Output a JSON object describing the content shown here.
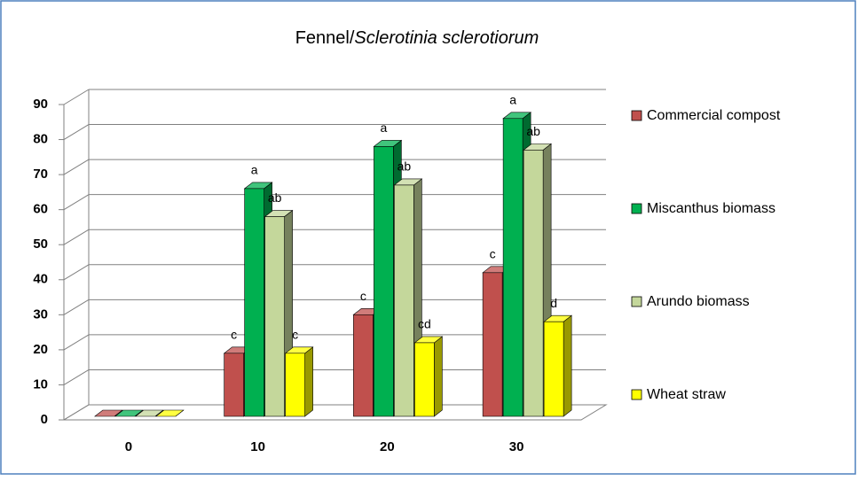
{
  "chart_data": {
    "type": "bar3d",
    "title": [
      "Fennel/",
      "Sclerotinia sclerotiorum"
    ],
    "categories": [
      "0",
      "10",
      "20",
      "30"
    ],
    "series": [
      {
        "name": "Commercial compost",
        "color": "#c0504d",
        "values": [
          0,
          18,
          29,
          41
        ],
        "annotations": [
          null,
          "c",
          "c",
          "c"
        ]
      },
      {
        "name": "Miscanthus biomass",
        "color": "#00b050",
        "values": [
          0,
          65,
          77,
          85
        ],
        "annotations": [
          null,
          "a",
          "a",
          "a"
        ]
      },
      {
        "name": "Arundo biomass",
        "color": "#c4d79b",
        "values": [
          0,
          57,
          66,
          76
        ],
        "annotations": [
          null,
          "ab",
          "ab",
          "ab"
        ]
      },
      {
        "name": "Wheat straw",
        "color": "#ffff00",
        "values": [
          0,
          18,
          21,
          27
        ],
        "annotations": [
          null,
          "c",
          "cd",
          "d"
        ]
      }
    ],
    "ylim": [
      0,
      90
    ],
    "yticks": [
      0,
      10,
      20,
      30,
      40,
      50,
      60,
      70,
      80,
      90
    ],
    "grid": true,
    "legend": "right"
  }
}
